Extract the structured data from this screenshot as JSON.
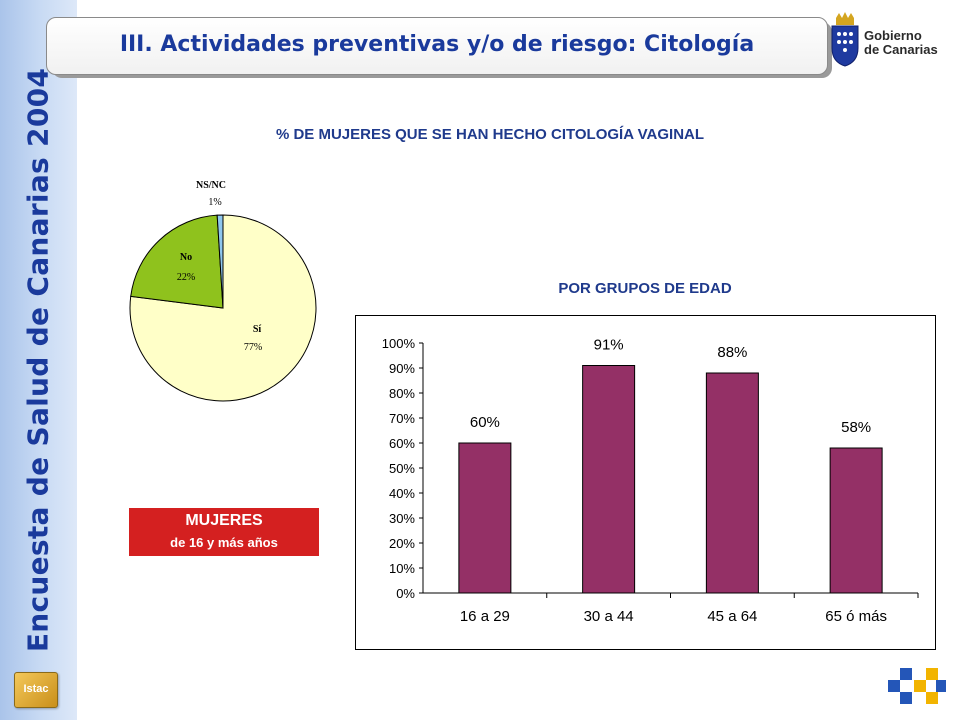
{
  "header": {
    "title": "III. Actividades preventivas y/o de riesgo: Citología",
    "side_title": "Encuesta de Salud de Canarias 2004",
    "logo_line1": "Gobierno",
    "logo_line2": "de Canarias",
    "istac_label": "Istac"
  },
  "main_title": "% DE MUJERES QUE SE HAN HECHO CITOLOGÍA VAGINAL",
  "sub_title": "POR GRUPOS DE EDAD",
  "badge": {
    "line1": "MUJERES",
    "line2": "de 16 y más años"
  },
  "colors": {
    "accent_blue": "#1a3a9c",
    "pie_si": "#ffffc8",
    "pie_no": "#8fc21d",
    "pie_nsnc": "#8fc7ee",
    "bar": "#943066",
    "badge": "#d42020"
  },
  "chart_data": [
    {
      "type": "pie",
      "slices": [
        {
          "name": "Sí",
          "value": 77,
          "label": "77%"
        },
        {
          "name": "No",
          "value": 22,
          "label": "22%"
        },
        {
          "name": "NS/NC",
          "value": 1,
          "label": "1%"
        }
      ]
    },
    {
      "type": "bar",
      "categories": [
        "16 a 29",
        "30 a 44",
        "45 a 64",
        "65 ó más"
      ],
      "values": [
        60,
        91,
        88,
        58
      ],
      "value_labels": [
        "60%",
        "91%",
        "88%",
        "58%"
      ],
      "ylim": [
        0,
        100
      ],
      "yticks": [
        "0%",
        "10%",
        "20%",
        "30%",
        "40%",
        "50%",
        "60%",
        "70%",
        "80%",
        "90%",
        "100%"
      ],
      "grid": false,
      "legend": "none"
    }
  ]
}
